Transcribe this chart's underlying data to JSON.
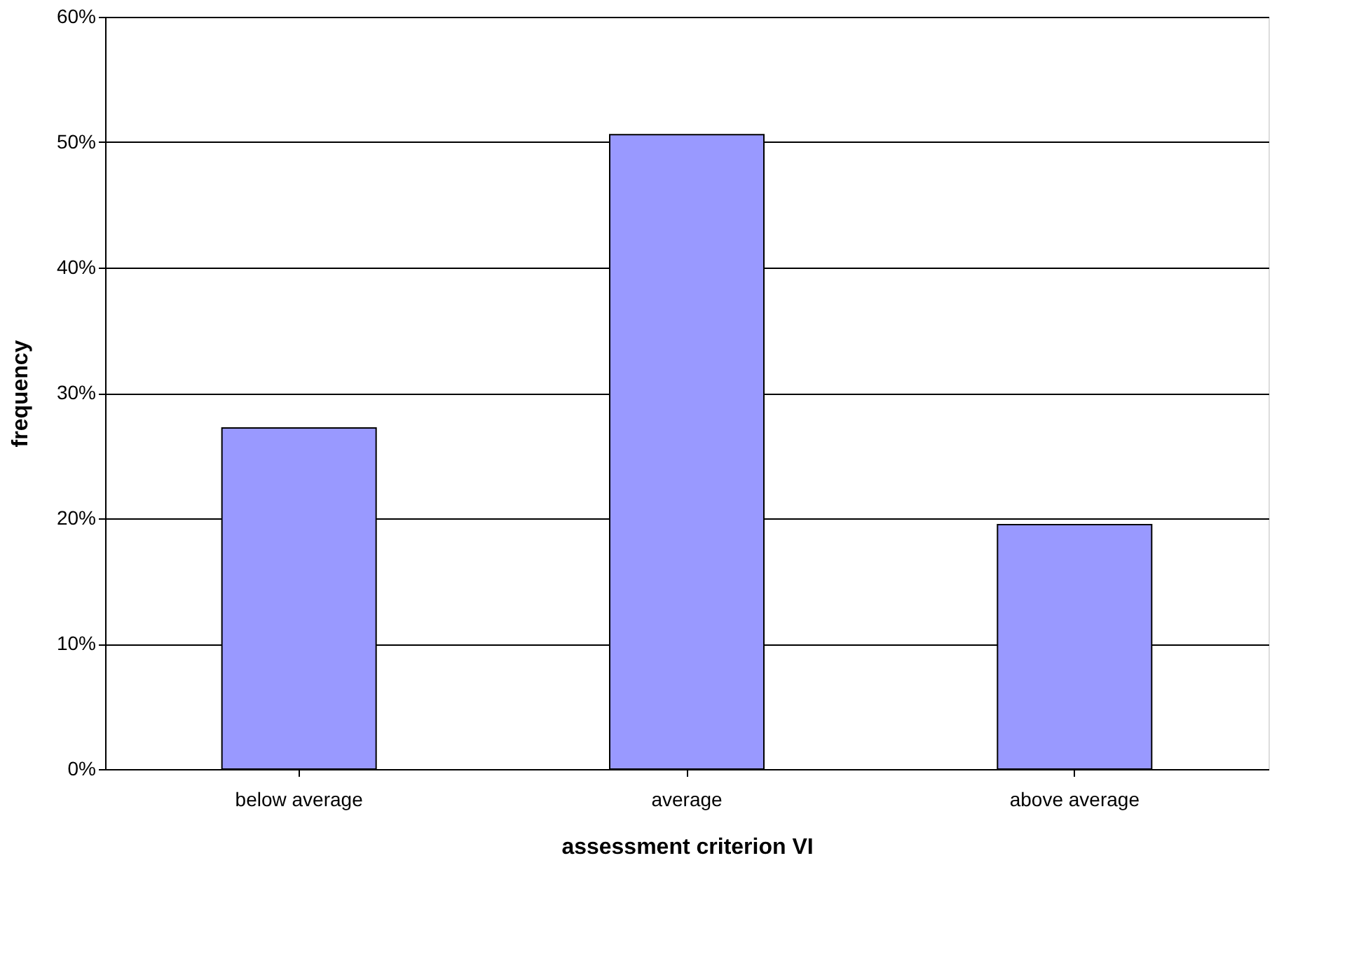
{
  "chart_data": {
    "type": "bar",
    "xlabel": "assessment criterion VI",
    "ylabel": "frequency",
    "categories": [
      "below average",
      "average",
      "above average"
    ],
    "series": [
      {
        "color": "#9999ff",
        "values": [
          27.2,
          50.6,
          19.5
        ]
      }
    ],
    "ylim": [
      0,
      60
    ],
    "yticks": [
      {
        "value": 0,
        "label": "0%"
      },
      {
        "value": 10,
        "label": "10%"
      },
      {
        "value": 20,
        "label": "20%"
      },
      {
        "value": 30,
        "label": "30%"
      },
      {
        "value": 40,
        "label": "40%"
      },
      {
        "value": 50,
        "label": "50%"
      },
      {
        "value": 60,
        "label": "60%"
      }
    ],
    "grid": "y",
    "legend": false
  }
}
